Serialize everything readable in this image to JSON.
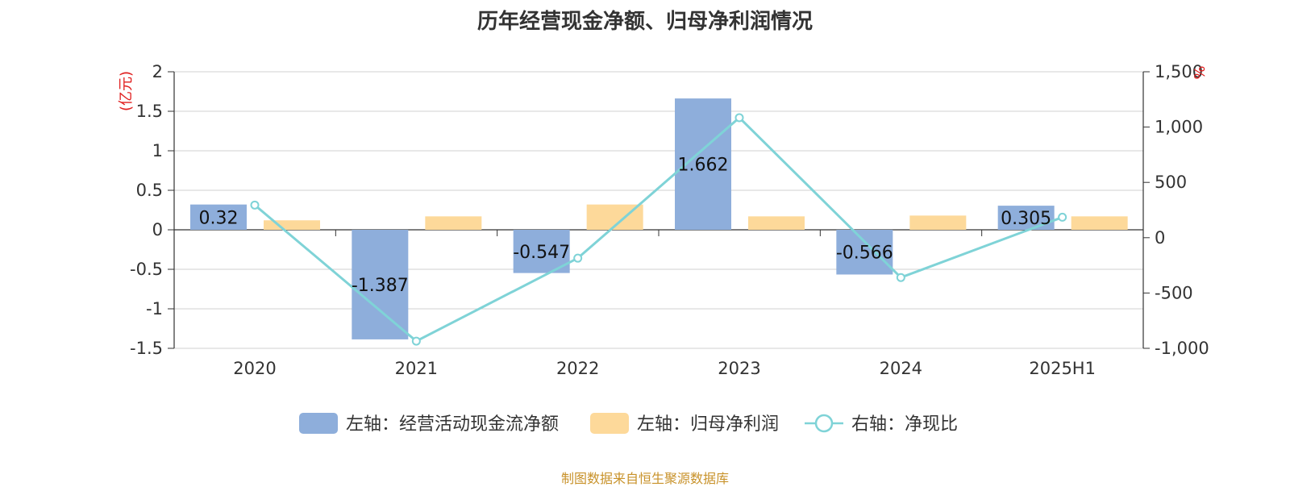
{
  "title": "历年经营现金净额、归母净利润情况",
  "source_note": "制图数据来自恒生聚源数据库",
  "chart_data": {
    "type": "bar",
    "categories": [
      "2020",
      "2021",
      "2022",
      "2023",
      "2024",
      "2025H1"
    ],
    "left_axis": {
      "unit": "(亿元)",
      "range": [
        -1.5,
        2
      ],
      "ticks": [
        -1.5,
        -1,
        -0.5,
        0,
        0.5,
        1,
        1.5,
        2
      ],
      "tick_labels": [
        "-1.5",
        "-1",
        "-0.5",
        "0",
        "0.5",
        "1",
        "1.5",
        "2"
      ]
    },
    "right_axis": {
      "unit": "%",
      "range": [
        -1000,
        1500
      ],
      "ticks": [
        -1000,
        -500,
        0,
        500,
        1000,
        1500
      ],
      "tick_labels": [
        "-1,000",
        "-500",
        "0",
        "500",
        "1,000",
        "1,500"
      ]
    },
    "series": [
      {
        "name": "左轴：经营活动现金流净额",
        "type": "bar",
        "axis": "left",
        "color": "#8eaedb",
        "values": [
          0.32,
          -1.387,
          -0.547,
          1.662,
          -0.566,
          0.305
        ],
        "labels": [
          "0.32",
          "-1.387",
          "-0.547",
          "1.662",
          "-0.566",
          "0.305"
        ]
      },
      {
        "name": "左轴：归母净利润",
        "type": "bar",
        "axis": "left",
        "color": "#fdd99a",
        "values": [
          0.12,
          0.17,
          0.32,
          0.17,
          0.18,
          0.17
        ]
      },
      {
        "name": "右轴：净现比",
        "type": "line",
        "axis": "right",
        "color": "#7fd3d7",
        "values": [
          295,
          -935,
          -185,
          1085,
          -360,
          185
        ]
      }
    ],
    "grid": true,
    "legend_position": "bottom"
  }
}
